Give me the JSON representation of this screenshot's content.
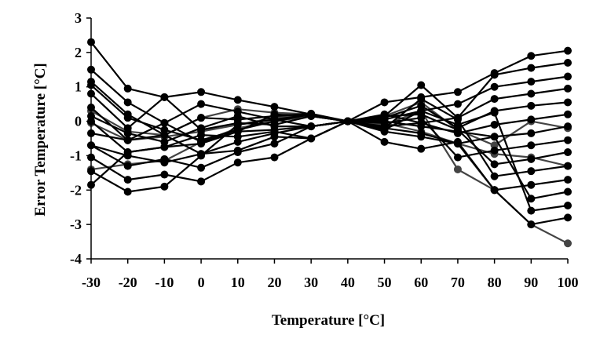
{
  "chart_data": {
    "type": "line",
    "xlabel": "Temperature [°C]",
    "ylabel": "Error Temperature [°C]",
    "xlim": [
      -30,
      100
    ],
    "ylim": [
      -4,
      3
    ],
    "x_ticks": [
      -30,
      -20,
      -10,
      0,
      10,
      20,
      30,
      40,
      50,
      60,
      70,
      80,
      90,
      100
    ],
    "y_ticks": [
      -4,
      -3,
      -2,
      -1,
      0,
      1,
      2,
      3
    ],
    "grid": false,
    "legend": "none",
    "colors": {
      "line": "#000000",
      "marker": "#000000",
      "highlight": "#444444"
    },
    "x": [
      -30,
      -20,
      -10,
      0,
      10,
      20,
      30,
      40,
      50,
      60,
      70,
      80,
      90,
      100
    ],
    "series": [
      {
        "values": [
          2.3,
          0.95,
          0.7,
          0.85,
          0.62,
          0.42,
          0.2,
          0,
          -0.6,
          -0.8,
          -0.6,
          -2.0,
          -3.0,
          -2.8
        ]
      },
      {
        "values": [
          1.5,
          0.55,
          -0.05,
          0.5,
          0.28,
          0.05,
          -0.15,
          0,
          0.55,
          0.7,
          0.85,
          1.4,
          1.9,
          2.05
        ]
      },
      {
        "values": [
          1.15,
          0.2,
          -0.4,
          0.1,
          0.05,
          0.15,
          0.22,
          0,
          0.15,
          1.05,
          0.1,
          1.35,
          1.55,
          1.7
        ]
      },
      {
        "values": [
          0.8,
          -0.2,
          0.7,
          -0.25,
          -0.05,
          -0.1,
          0.15,
          0,
          0.05,
          0.3,
          0.5,
          1.0,
          1.15,
          1.3
        ]
      },
      {
        "values": [
          0.4,
          -0.55,
          -0.05,
          -0.6,
          -0.3,
          -0.25,
          -0.15,
          0,
          -0.15,
          -0.05,
          0.1,
          0.65,
          0.8,
          0.95
        ]
      },
      {
        "values": [
          0.0,
          -0.9,
          -0.75,
          -0.4,
          -0.45,
          -0.3,
          -0.5,
          0,
          0.1,
          0.45,
          -0.2,
          0.3,
          0.45,
          0.55
        ]
      },
      {
        "values": [
          -0.35,
          -0.55,
          -0.4,
          -0.95,
          -0.85,
          -0.45,
          -0.5,
          0,
          0.2,
          -0.05,
          -0.35,
          -0.1,
          0.05,
          0.2
        ]
      },
      {
        "values": [
          -0.7,
          -1.3,
          -1.1,
          -1.35,
          -0.9,
          -0.65,
          -0.15,
          0,
          -0.3,
          -0.45,
          -0.65,
          -0.45,
          -0.35,
          -0.15
        ]
      },
      {
        "values": [
          -1.05,
          -1.7,
          -1.55,
          -1.75,
          -1.2,
          -1.05,
          -0.5,
          0,
          -0.05,
          0.1,
          -1.05,
          -0.85,
          -0.7,
          -0.55
        ]
      },
      {
        "values": [
          -1.45,
          -2.05,
          -1.9,
          -1.0,
          -0.1,
          0.05,
          0.2,
          0,
          0.15,
          0.2,
          -0.25,
          -1.25,
          -1.1,
          -0.9
        ]
      },
      {
        "values": [
          -1.85,
          -0.9,
          -0.75,
          -0.65,
          -0.3,
          0.2,
          0.15,
          0,
          -0.2,
          0.65,
          0.05,
          -1.6,
          -1.45,
          -1.3
        ]
      },
      {
        "values": [
          0.15,
          -0.35,
          -0.6,
          -0.2,
          0.15,
          -0.15,
          -0.15,
          0,
          -0.2,
          -0.35,
          -0.65,
          -2.0,
          -1.85,
          -1.7
        ]
      },
      {
        "values": [
          -0.7,
          -1.0,
          -1.2,
          -0.95,
          -0.6,
          -0.35,
          -0.15,
          0,
          0.0,
          -0.15,
          -0.3,
          -0.45,
          -2.25,
          -2.05
        ]
      },
      {
        "values": [
          1.05,
          0.1,
          -0.25,
          -0.55,
          -0.25,
          0.0,
          0.2,
          0,
          -0.25,
          0.3,
          -0.1,
          0.25,
          -2.6,
          -2.45
        ]
      },
      {
        "values": [
          -1.4,
          -1.25,
          -1.15,
          -0.6,
          -0.2,
          0.0,
          0.15,
          0,
          -0.05,
          -0.3,
          -0.65,
          -0.95,
          -1.05,
          -1.3
        ],
        "highlight": true
      },
      {
        "values": [
          0.3,
          -0.3,
          -0.4,
          0.1,
          0.35,
          0.25,
          0.2,
          0,
          -0.1,
          0.3,
          -1.4,
          -2.0,
          -3.0,
          -3.55
        ],
        "highlight": true
      },
      {
        "values": [
          -0.05,
          -0.55,
          -0.45,
          -0.3,
          -0.1,
          0.1,
          0.2,
          0,
          0.15,
          0.55,
          -0.25,
          -0.7,
          0.0,
          -0.2
        ],
        "highlight": true
      }
    ]
  }
}
